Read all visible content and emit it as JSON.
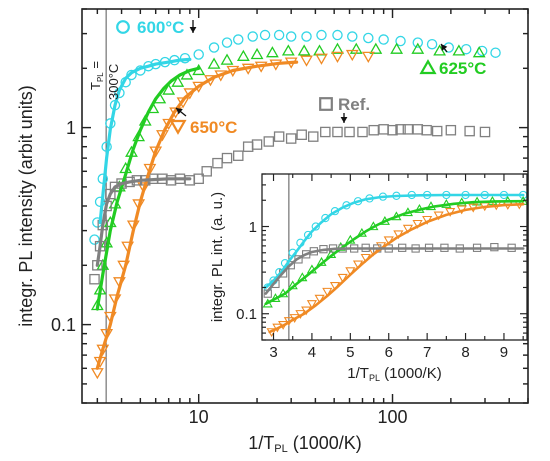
{
  "chart_data": [
    {
      "id": "main",
      "type": "scatter",
      "xlabel": "1/T",
      "xlabel_sub": "PL",
      "xlabel_unit": " (1000/K)",
      "ylabel": "integr. PL intensity (arbit units)",
      "xscale": "log",
      "yscale": "log",
      "xlim": [
        2.5,
        500
      ],
      "ylim": [
        0.04,
        4
      ],
      "xticks": [
        {
          "v": 10,
          "label": "10"
        },
        {
          "v": 100,
          "label": "100"
        }
      ],
      "yticks": [
        {
          "v": 0.1,
          "label": "0.1"
        },
        {
          "v": 1,
          "label": "1"
        }
      ],
      "vline": {
        "x": 3.33,
        "label_top": "T",
        "label_sub": "PL",
        "label_eq": " =",
        "label_val": "300°C"
      },
      "series": [
        {
          "name": "600°C",
          "color": "#33d6e6",
          "marker": "circle",
          "x": [
            2.9,
            3.0,
            3.1,
            3.2,
            3.35,
            3.5,
            3.7,
            3.9,
            4.2,
            4.5,
            5.0,
            5.5,
            6.0,
            6.7,
            7.5,
            8.5,
            10,
            12,
            14,
            16,
            19,
            22,
            26,
            30,
            36,
            43,
            52,
            62,
            75,
            90,
            110,
            135,
            160,
            195,
            240,
            290,
            340
          ],
          "y": [
            0.27,
            0.33,
            0.42,
            0.55,
            0.8,
            1.05,
            1.3,
            1.5,
            1.7,
            1.85,
            1.95,
            2.05,
            2.1,
            2.15,
            2.2,
            2.25,
            2.35,
            2.55,
            2.7,
            2.8,
            2.9,
            2.95,
            2.95,
            2.9,
            2.9,
            2.95,
            2.95,
            2.9,
            2.85,
            2.8,
            2.75,
            2.7,
            2.65,
            2.55,
            2.5,
            2.45,
            2.4
          ],
          "fit_x": [
            3.1,
            3.2,
            3.35,
            3.5,
            3.7,
            3.9,
            4.2,
            4.5,
            5.0,
            5.5,
            6.0,
            7.0,
            8.0,
            9.0
          ],
          "fit_y": [
            0.33,
            0.45,
            0.7,
            0.98,
            1.3,
            1.55,
            1.78,
            1.9,
            2.0,
            2.05,
            2.1,
            2.15,
            2.2,
            2.22
          ]
        },
        {
          "name": "625°C",
          "color": "#22cc22",
          "marker": "triangle-up",
          "x": [
            3.0,
            3.1,
            3.2,
            3.35,
            3.5,
            3.7,
            3.9,
            4.2,
            4.5,
            4.9,
            5.3,
            5.8,
            6.3,
            7.0,
            7.8,
            8.7,
            10,
            12,
            14,
            17,
            20,
            24,
            29,
            35,
            42,
            52,
            65,
            82,
            105,
            135,
            175,
            220,
            280
          ],
          "y": [
            0.125,
            0.15,
            0.2,
            0.26,
            0.33,
            0.41,
            0.5,
            0.62,
            0.75,
            0.9,
            1.08,
            1.25,
            1.4,
            1.55,
            1.7,
            1.85,
            1.95,
            2.1,
            2.2,
            2.3,
            2.35,
            2.4,
            2.45,
            2.45,
            2.45,
            2.5,
            2.5,
            2.5,
            2.5,
            2.5,
            2.45,
            2.45,
            2.4
          ],
          "fit_x": [
            3.0,
            3.2,
            3.5,
            3.8,
            4.2,
            4.6,
            5.0,
            5.5,
            6.0,
            6.6,
            7.2,
            8.0,
            9.0,
            10.0
          ],
          "fit_y": [
            0.12,
            0.18,
            0.3,
            0.42,
            0.58,
            0.78,
            0.97,
            1.2,
            1.4,
            1.58,
            1.72,
            1.85,
            1.95,
            2.0
          ]
        },
        {
          "name": "650°C",
          "color": "#f08a24",
          "marker": "triangle-down",
          "x": [
            3.0,
            3.1,
            3.2,
            3.35,
            3.5,
            3.7,
            3.9,
            4.1,
            4.3,
            4.6,
            4.9,
            5.2,
            5.6,
            6.0,
            6.5,
            7.0,
            7.6,
            8.3,
            9.0,
            10,
            11.5,
            13,
            15,
            18,
            21,
            25,
            30,
            36,
            43,
            52,
            62,
            75
          ],
          "y": [
            0.057,
            0.065,
            0.075,
            0.09,
            0.11,
            0.135,
            0.165,
            0.2,
            0.25,
            0.32,
            0.41,
            0.5,
            0.62,
            0.76,
            0.92,
            1.05,
            1.2,
            1.35,
            1.5,
            1.62,
            1.75,
            1.85,
            1.95,
            2.0,
            2.05,
            2.1,
            2.15,
            2.2,
            2.25,
            2.3,
            2.35,
            2.3
          ],
          "fit_x": [
            3.0,
            3.2,
            3.5,
            3.8,
            4.2,
            4.6,
            5.0,
            5.5,
            6.0,
            6.7,
            7.5,
            8.5,
            10,
            12,
            15,
            20,
            26,
            32
          ],
          "fit_y": [
            0.06,
            0.075,
            0.1,
            0.14,
            0.2,
            0.3,
            0.42,
            0.58,
            0.76,
            0.98,
            1.2,
            1.42,
            1.62,
            1.8,
            1.95,
            2.05,
            2.12,
            2.15
          ]
        },
        {
          "name": "Ref.",
          "color": "#808080",
          "marker": "square",
          "x": [
            2.9,
            3.0,
            3.1,
            3.2,
            3.35,
            3.5,
            3.7,
            4.0,
            4.4,
            4.8,
            5.3,
            5.8,
            6.5,
            7.2,
            8.0,
            9.0,
            10,
            11,
            12.5,
            14,
            16,
            18,
            20,
            23,
            26,
            30,
            34,
            39,
            45,
            52,
            60,
            70,
            80,
            90,
            100,
            110,
            120,
            135,
            150,
            170,
            200,
            250,
            300
          ],
          "y": [
            0.17,
            0.2,
            0.25,
            0.32,
            0.4,
            0.46,
            0.5,
            0.52,
            0.53,
            0.54,
            0.54,
            0.55,
            0.55,
            0.54,
            0.55,
            0.54,
            0.55,
            0.6,
            0.66,
            0.7,
            0.72,
            0.8,
            0.82,
            0.85,
            0.9,
            0.88,
            0.92,
            0.9,
            0.95,
            0.95,
            0.95,
            0.95,
            0.97,
            0.98,
            0.97,
            0.98,
            0.98,
            0.98,
            0.97,
            0.96,
            0.97,
            0.96,
            0.95
          ],
          "fit_x": [
            3.0,
            3.1,
            3.2,
            3.35,
            3.5,
            3.7,
            4.0,
            4.4,
            5.0,
            6.0,
            7.0,
            8.0,
            9.0
          ],
          "fit_y": [
            0.2,
            0.25,
            0.32,
            0.41,
            0.46,
            0.5,
            0.52,
            0.53,
            0.54,
            0.545,
            0.55,
            0.55,
            0.55
          ]
        }
      ],
      "annotations": [
        {
          "series": "600°C",
          "text": "600°C",
          "marker": "circle"
        },
        {
          "series": "625°C",
          "text": "625°C",
          "marker": "triangle-up"
        },
        {
          "series": "650°C",
          "text": "650°C",
          "marker": "triangle-down"
        },
        {
          "series": "Ref.",
          "text": "Ref.",
          "marker": "square"
        }
      ]
    },
    {
      "id": "inset",
      "type": "scatter",
      "xlabel": "1/T",
      "xlabel_sub": "PL",
      "xlabel_unit": " (1000/K)",
      "ylabel": "integr. PL int. (a. u.)",
      "xscale": "linear",
      "yscale": "log",
      "xlim": [
        2.7,
        9.6
      ],
      "ylim": [
        0.05,
        4
      ],
      "xticks": [
        {
          "v": 3,
          "label": "3"
        },
        {
          "v": 4,
          "label": "4"
        },
        {
          "v": 5,
          "label": "5"
        },
        {
          "v": 6,
          "label": "6"
        },
        {
          "v": 7,
          "label": "7"
        },
        {
          "v": 8,
          "label": "8"
        },
        {
          "v": 9,
          "label": "9"
        }
      ],
      "yticks": [
        {
          "v": 0.1,
          "label": "0.1"
        },
        {
          "v": 1,
          "label": "1"
        }
      ],
      "vline": {
        "x": 3.4
      },
      "series": [
        {
          "name": "600°C",
          "color": "#33d6e6",
          "marker": "circle",
          "x": [
            2.85,
            3.0,
            3.15,
            3.3,
            3.5,
            3.7,
            3.9,
            4.1,
            4.35,
            4.6,
            4.9,
            5.2,
            5.5,
            5.85,
            6.2,
            6.6,
            7.0,
            7.5,
            8.0,
            8.5,
            9.0,
            9.5
          ],
          "y": [
            0.2,
            0.24,
            0.3,
            0.38,
            0.5,
            0.65,
            0.8,
            1.0,
            1.25,
            1.5,
            1.75,
            1.95,
            2.1,
            2.2,
            2.25,
            2.3,
            2.3,
            2.3,
            2.3,
            2.3,
            2.3,
            2.3
          ],
          "fit_x": [
            2.8,
            3.0,
            3.2,
            3.4,
            3.6,
            3.8,
            4.0,
            4.25,
            4.5,
            4.8,
            5.1,
            5.4,
            5.8,
            6.2,
            6.8,
            7.5,
            8.5,
            9.5
          ],
          "fit_y": [
            0.2,
            0.24,
            0.3,
            0.4,
            0.52,
            0.68,
            0.88,
            1.12,
            1.38,
            1.65,
            1.88,
            2.05,
            2.18,
            2.24,
            2.28,
            2.3,
            2.3,
            2.3
          ]
        },
        {
          "name": "625°C",
          "color": "#22cc22",
          "marker": "triangle-up",
          "x": [
            2.85,
            3.05,
            3.25,
            3.5,
            3.75,
            4.0,
            4.25,
            4.5,
            4.75,
            5.0,
            5.3,
            5.6,
            5.9,
            6.2,
            6.5,
            6.8,
            7.1,
            7.5,
            7.9,
            8.3,
            8.7,
            9.1,
            9.5
          ],
          "y": [
            0.13,
            0.15,
            0.17,
            0.21,
            0.26,
            0.32,
            0.39,
            0.48,
            0.58,
            0.7,
            0.84,
            1.0,
            1.15,
            1.3,
            1.45,
            1.58,
            1.7,
            1.8,
            1.88,
            1.92,
            1.95,
            1.95,
            1.95
          ],
          "fit_x": [
            2.8,
            3.0,
            3.3,
            3.6,
            3.9,
            4.2,
            4.5,
            4.8,
            5.1,
            5.4,
            5.7,
            6.0,
            6.4,
            6.8,
            7.2,
            7.7,
            8.2,
            8.8,
            9.5
          ],
          "fit_y": [
            0.13,
            0.145,
            0.17,
            0.22,
            0.28,
            0.36,
            0.46,
            0.58,
            0.72,
            0.88,
            1.04,
            1.2,
            1.4,
            1.56,
            1.7,
            1.82,
            1.9,
            1.94,
            1.95
          ]
        },
        {
          "name": "650°C",
          "color": "#f08a24",
          "marker": "triangle-down",
          "x": [
            2.95,
            3.1,
            3.25,
            3.4,
            3.55,
            3.7,
            3.85,
            4.0,
            4.2,
            4.4,
            4.6,
            4.8,
            5.0,
            5.2,
            5.4,
            5.6,
            5.8,
            6.0,
            6.25,
            6.5,
            6.75,
            7.0,
            7.3,
            7.6,
            7.9,
            8.2,
            8.5,
            8.8,
            9.1,
            9.4
          ],
          "y": [
            0.062,
            0.07,
            0.075,
            0.083,
            0.09,
            0.1,
            0.11,
            0.13,
            0.15,
            0.18,
            0.21,
            0.26,
            0.31,
            0.37,
            0.44,
            0.52,
            0.6,
            0.7,
            0.82,
            0.95,
            1.08,
            1.2,
            1.35,
            1.48,
            1.58,
            1.66,
            1.72,
            1.76,
            1.78,
            1.8
          ],
          "fit_x": [
            2.9,
            3.1,
            3.3,
            3.5,
            3.8,
            4.1,
            4.4,
            4.7,
            5.0,
            5.3,
            5.6,
            5.9,
            6.2,
            6.6,
            7.0,
            7.5,
            8.0,
            8.5,
            9.0,
            9.5
          ],
          "fit_y": [
            0.062,
            0.068,
            0.075,
            0.085,
            0.1,
            0.125,
            0.16,
            0.21,
            0.28,
            0.37,
            0.48,
            0.6,
            0.74,
            0.93,
            1.13,
            1.36,
            1.55,
            1.68,
            1.76,
            1.8
          ]
        },
        {
          "name": "Ref.",
          "color": "#808080",
          "marker": "square",
          "x": [
            2.85,
            3.05,
            3.25,
            3.45,
            3.65,
            3.85,
            4.05,
            4.3,
            4.55,
            4.8,
            5.1,
            5.4,
            5.7,
            6.0,
            6.35,
            6.7,
            7.05,
            7.45,
            7.85,
            8.3,
            8.75,
            9.2
          ],
          "y": [
            0.17,
            0.22,
            0.29,
            0.36,
            0.42,
            0.48,
            0.52,
            0.55,
            0.56,
            0.56,
            0.56,
            0.57,
            0.56,
            0.56,
            0.57,
            0.56,
            0.57,
            0.57,
            0.56,
            0.57,
            0.58,
            0.57
          ],
          "fit_x": [
            2.8,
            3.0,
            3.2,
            3.4,
            3.6,
            3.8,
            4.0,
            4.3,
            4.6,
            5.0,
            5.5,
            6.5,
            7.5,
            8.5,
            9.5
          ],
          "fit_y": [
            0.17,
            0.22,
            0.28,
            0.35,
            0.42,
            0.47,
            0.51,
            0.54,
            0.555,
            0.56,
            0.56,
            0.56,
            0.56,
            0.56,
            0.56
          ]
        }
      ]
    }
  ]
}
